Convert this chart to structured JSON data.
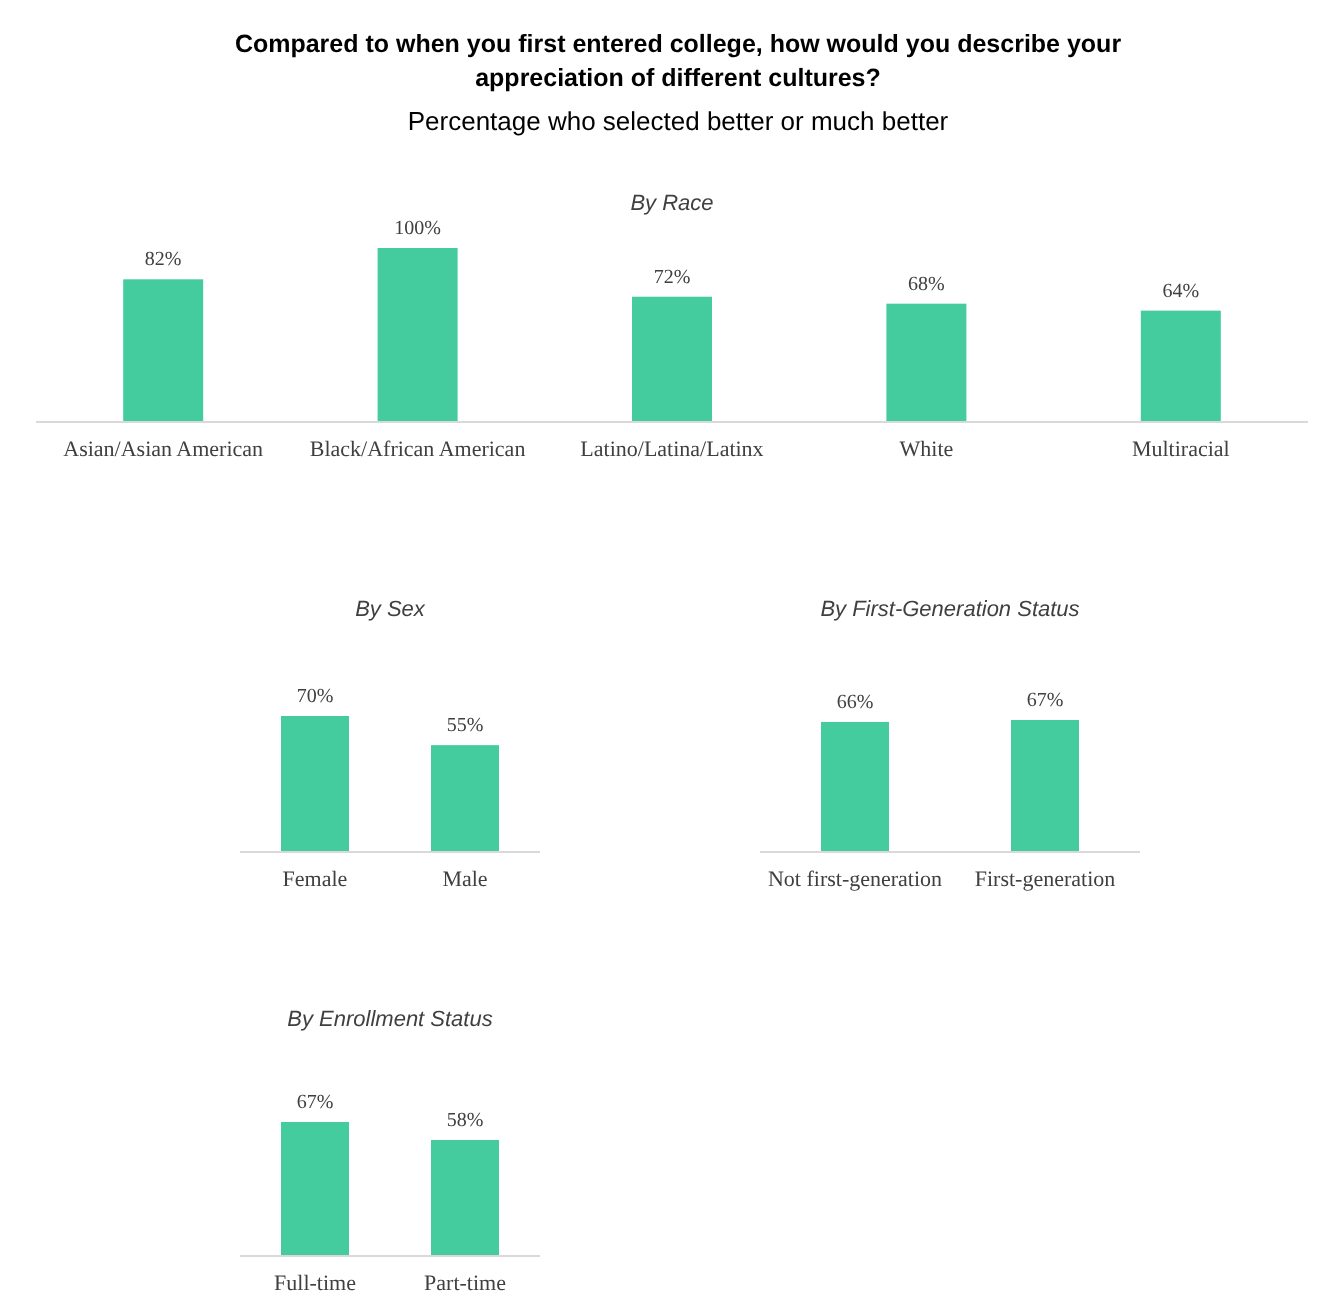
{
  "chart_data": [
    {
      "type": "other",
      "title": "Compared to when you first entered college, how would you describe your appreciation of different cultures?",
      "subtitle": "Percentage who selected better or much better"
    },
    {
      "type": "bar",
      "title": "By Race",
      "categories": [
        "Asian/Asian American",
        "Black/African American",
        "Latino/Latina/Latinx",
        "White",
        "Multiracial"
      ],
      "values": [
        82,
        100,
        72,
        68,
        64
      ],
      "value_labels": [
        "82%",
        "100%",
        "72%",
        "68%",
        "64%"
      ],
      "color": "#44cc9e"
    },
    {
      "type": "bar",
      "title": "By Sex",
      "categories": [
        "Female",
        "Male"
      ],
      "values": [
        70,
        55
      ],
      "value_labels": [
        "70%",
        "55%"
      ],
      "color": "#44cc9e"
    },
    {
      "type": "bar",
      "title": "By First-Generation Status",
      "categories": [
        "Not first-generation",
        "First-generation"
      ],
      "values": [
        66,
        67
      ],
      "value_labels": [
        "66%",
        "67%"
      ],
      "color": "#44cc9e"
    },
    {
      "type": "bar",
      "title": "By Enrollment Status",
      "categories": [
        "Full-time",
        "Part-time"
      ],
      "values": [
        67,
        58
      ],
      "value_labels": [
        "67%",
        "58%"
      ],
      "color": "#44cc9e"
    }
  ]
}
